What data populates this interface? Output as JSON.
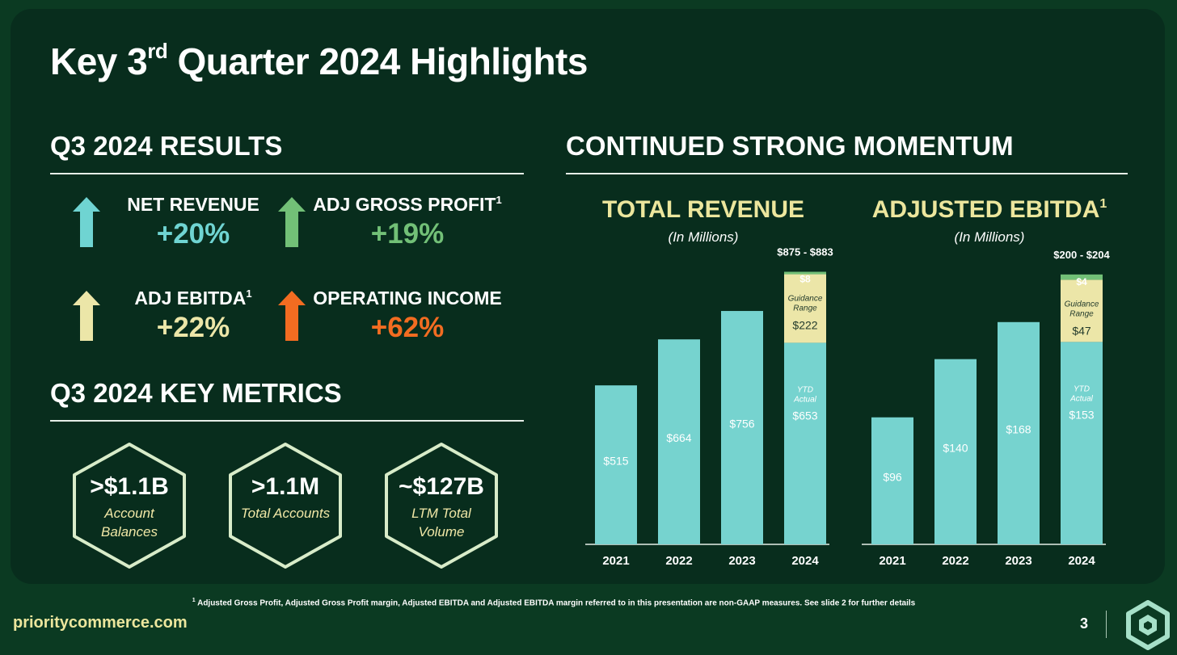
{
  "title": {
    "prefix": "Key 3",
    "sup": "rd",
    "suffix": " Quarter 2024 Highlights"
  },
  "results": {
    "heading": "Q3 2024 RESULTS",
    "items": [
      {
        "label": "NET REVENUE",
        "sup": "",
        "value": "+20%",
        "color": "#6fd4d2"
      },
      {
        "label": "ADJ GROSS PROFIT",
        "sup": "1",
        "value": "+19%",
        "color": "#72c077"
      },
      {
        "label": "ADJ EBITDA",
        "sup": "1",
        "value": "+22%",
        "color": "#ece6a8"
      },
      {
        "label": "OPERATING INCOME",
        "sup": "",
        "value": "+62%",
        "color": "#f26c21"
      }
    ]
  },
  "metrics": {
    "heading": "Q3 2024 KEY METRICS",
    "items": [
      {
        "value": ">$1.1B",
        "label": "Account Balances"
      },
      {
        "value": ">1.1M",
        "label": "Total Accounts"
      },
      {
        "value": "~$127B",
        "label": "LTM Total Volume"
      }
    ]
  },
  "momentum": {
    "heading": "CONTINUED STRONG MOMENTUM"
  },
  "chart_data": [
    {
      "type": "bar",
      "title": "TOTAL REVENUE",
      "title_sup": "",
      "subtitle": "(In Millions)",
      "categories": [
        "2021",
        "2022",
        "2023",
        "2024"
      ],
      "values": [
        515,
        664,
        756,
        653
      ],
      "value_labels": [
        "$515",
        "$664",
        "$756",
        "$653"
      ],
      "ylim": [
        0,
        900
      ],
      "stack_2024": {
        "ytd_label": "YTD Actual",
        "guidance_value": 222,
        "guidance_label": "$222",
        "guidance_text": "Guidance Range",
        "range_width": 8,
        "range_width_label": "$8",
        "range_label": "$875 - $883"
      },
      "colors": {
        "bar": "#76d3cf",
        "guidance": "#ece6a8",
        "range": "#72c077"
      }
    },
    {
      "type": "bar",
      "title": "ADJUSTED EBITDA",
      "title_sup": "1",
      "subtitle": "(In Millions)",
      "categories": [
        "2021",
        "2022",
        "2023",
        "2024"
      ],
      "values": [
        96,
        140,
        168,
        153
      ],
      "value_labels": [
        "$96",
        "$140",
        "$168",
        "$153"
      ],
      "ylim": [
        0,
        210
      ],
      "stack_2024": {
        "ytd_label": "YTD Actual",
        "guidance_value": 47,
        "guidance_label": "$47",
        "guidance_text": "Guidance Range",
        "range_width": 4,
        "range_width_label": "$4",
        "range_label": "$200 - $204"
      },
      "colors": {
        "bar": "#76d3cf",
        "guidance": "#ece6a8",
        "range": "#72c077"
      }
    }
  ],
  "footer": {
    "footnote_sup": "1",
    "footnote": " Adjusted Gross Profit, Adjusted Gross Profit margin, Adjusted EBITDA and Adjusted EBITDA margin referred to in this presentation are non-GAAP measures. See slide 2 for further details",
    "site": "prioritycommerce.com",
    "page": "3"
  }
}
